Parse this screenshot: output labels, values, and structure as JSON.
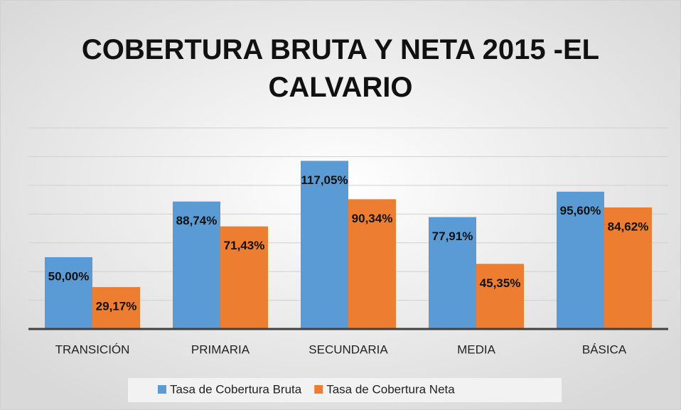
{
  "chart_data": {
    "type": "bar",
    "title": "COBERTURA BRUTA Y NETA 2015 -EL CALVARIO",
    "categories": [
      "TRANSICIÓN",
      "PRIMARIA",
      "SECUNDARIA",
      "MEDIA",
      "BÁSICA"
    ],
    "series": [
      {
        "name": "Tasa de Cobertura Bruta",
        "color": "#5b9bd5",
        "values": [
          50,
          88.74,
          117.05,
          77.91,
          95.6
        ],
        "value_labels": [
          "50,00%",
          "88,74%",
          "117,05%",
          "77,91%",
          "95,60%"
        ]
      },
      {
        "name": "Tasa de Cobertura Neta",
        "color": "#ed7d31",
        "values": [
          29.17,
          71.43,
          90.34,
          45.35,
          84.62
        ],
        "value_labels": [
          "29,17%",
          "71,43%",
          "90,34%",
          "45,35%",
          "84,62%"
        ]
      }
    ],
    "ylim": [
      0,
      140
    ],
    "yticks": [
      0,
      20,
      40,
      60,
      80,
      100,
      120,
      140
    ],
    "grid": true,
    "legend": "bottom"
  }
}
